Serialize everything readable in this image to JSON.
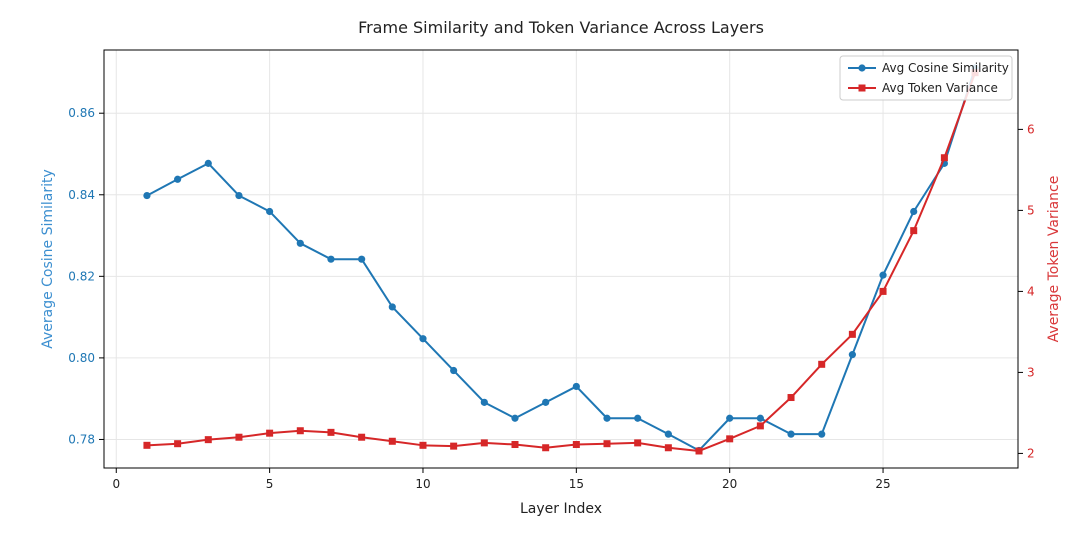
{
  "chart_data": {
    "type": "line",
    "title": "Frame Similarity and Token Variance Across Layers",
    "xlabel": "Layer Index",
    "ylabel_left": "Average Cosine Similarity",
    "ylabel_right": "Average Token Variance",
    "xlim": [
      -0.4,
      29.4
    ],
    "ylim_left": [
      0.773,
      0.8755
    ],
    "ylim_right": [
      1.82,
      6.98
    ],
    "x_ticks": [
      0,
      5,
      10,
      15,
      20,
      25
    ],
    "y_left_ticks": [
      0.78,
      0.8,
      0.82,
      0.84,
      0.86
    ],
    "y_left_tick_labels": [
      "0.78",
      "0.80",
      "0.82",
      "0.84",
      "0.86"
    ],
    "y_right_ticks": [
      2,
      3,
      4,
      5,
      6
    ],
    "grid": true,
    "legend_position": "top-right",
    "x": [
      1,
      2,
      3,
      4,
      5,
      6,
      7,
      8,
      9,
      10,
      11,
      12,
      13,
      14,
      15,
      16,
      17,
      18,
      19,
      20,
      21,
      22,
      23,
      24,
      25,
      26,
      27,
      28
    ],
    "series": [
      {
        "name": "Avg Cosine Similarity",
        "axis": "left",
        "marker": "circle",
        "color": "#1f77b4",
        "values": [
          0.8398,
          0.8438,
          0.8477,
          0.8398,
          0.8359,
          0.8281,
          0.8242,
          0.8242,
          0.8125,
          0.8047,
          0.7969,
          0.7891,
          0.7852,
          0.7891,
          0.793,
          0.7852,
          0.7852,
          0.7813,
          0.7773,
          0.7852,
          0.7852,
          0.7813,
          0.7813,
          0.8008,
          0.8203,
          0.8359,
          0.8477,
          0.8711
        ]
      },
      {
        "name": "Avg Token Variance",
        "axis": "right",
        "marker": "square",
        "color": "#d62728",
        "values": [
          2.1,
          2.12,
          2.17,
          2.2,
          2.25,
          2.28,
          2.26,
          2.2,
          2.15,
          2.1,
          2.09,
          2.13,
          2.11,
          2.07,
          2.11,
          2.12,
          2.13,
          2.07,
          2.03,
          2.18,
          2.34,
          2.69,
          3.1,
          3.47,
          4.0,
          4.75,
          5.65,
          6.7
        ]
      }
    ],
    "colors": {
      "left_axis": "#1f77b4",
      "right_axis": "#d62728",
      "left_label": "#3c8fd0",
      "right_label": "#d9383a",
      "grid": "#e6e6e6"
    }
  }
}
